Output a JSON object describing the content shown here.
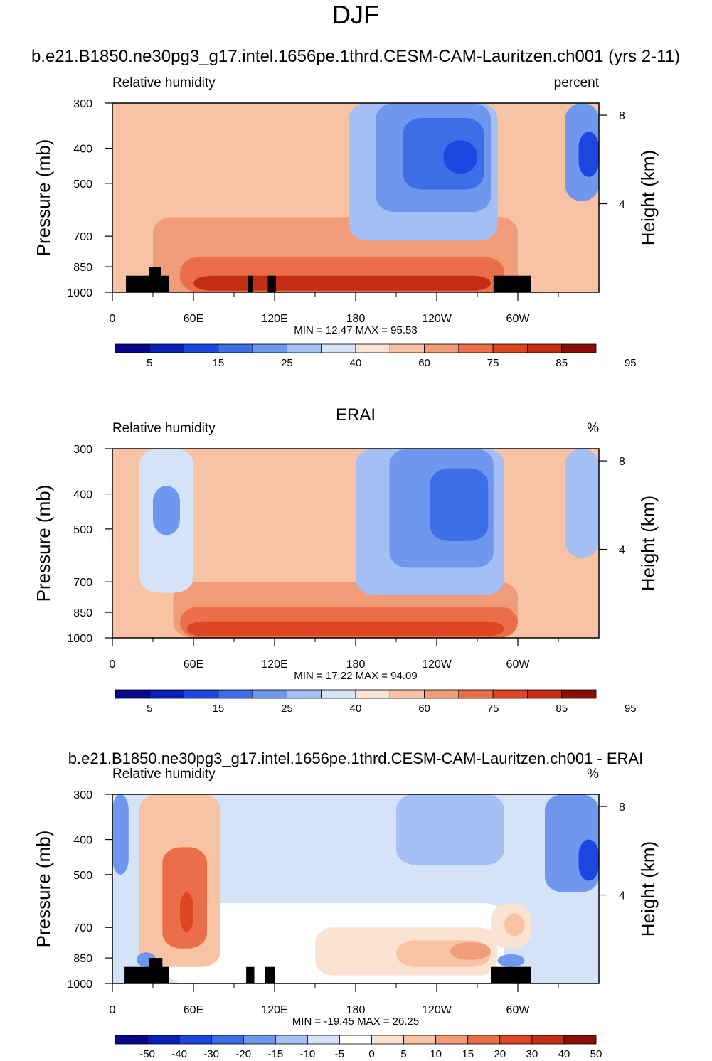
{
  "page": {
    "title": "DJF",
    "run_title": "b.e21.B1850.ne30pg3_g17.intel.1656pe.1thrd.CESM-CAM-Lauritzen.ch001 (yrs 2-11)"
  },
  "colors": {
    "rh_scale": [
      "#08088c",
      "#0a1fb5",
      "#1b46e0",
      "#3d6ee8",
      "#6f97ee",
      "#a3bff3",
      "#d4e3f7",
      "#fbe3d3",
      "#f8c2a4",
      "#f19c78",
      "#ea6f48",
      "#dc4623",
      "#c42e14",
      "#8c0d05"
    ],
    "diff_scale": [
      "#08088c",
      "#0a1fb5",
      "#1b46e0",
      "#3d6ee8",
      "#6f97ee",
      "#a3bff3",
      "#d4e3f7",
      "#ffffff",
      "#fbe3d3",
      "#f8c2a4",
      "#f19c78",
      "#ea6f48",
      "#dc4623",
      "#c42e14",
      "#8c0d05"
    ]
  },
  "chart_data": [
    {
      "type": "heatmap",
      "id": "model",
      "title": "",
      "left_label": "Relative humidity",
      "right_label": "percent",
      "ylabel": "Pressure (mb)",
      "ylabel_right": "Height (km)",
      "x_ticks": [
        "0",
        "60E",
        "120E",
        "180",
        "120W",
        "60W"
      ],
      "x_tick_lon": [
        0,
        60,
        120,
        180,
        240,
        300
      ],
      "xlim": [
        0,
        360
      ],
      "y_ticks": [
        "300",
        "400",
        "500",
        "700",
        "850",
        "1000"
      ],
      "y_tick_values": [
        300,
        400,
        500,
        700,
        850,
        1000
      ],
      "ylim": [
        300,
        1000
      ],
      "right_ticks": [
        "8",
        "4"
      ],
      "right_tick_km": [
        8,
        4
      ],
      "stats": "MIN =  12.47  MAX =  95.53",
      "min": 12.47,
      "max": 95.53,
      "colorbar_labels": [
        "5",
        "15",
        "25",
        "40",
        "60",
        "75",
        "85",
        "95"
      ],
      "colorbar_levels": [
        5,
        10,
        15,
        20,
        25,
        30,
        40,
        50,
        60,
        70,
        75,
        80,
        85,
        90,
        95
      ],
      "fields": [
        {
          "name": "background",
          "level_index": 8,
          "lon": [
            0,
            360
          ],
          "p": [
            300,
            1000
          ]
        },
        {
          "name": "lower_troposphere",
          "level_index": 9,
          "lon": [
            30,
            300
          ],
          "p": [
            620,
            1000
          ]
        },
        {
          "name": "boundary_layer",
          "level_index": 10,
          "lon": [
            50,
            290
          ],
          "p": [
            800,
            1000
          ]
        },
        {
          "name": "surface_max",
          "level_index": 12,
          "lon": [
            60,
            280
          ],
          "p": [
            900,
            990
          ]
        },
        {
          "name": "pacific_dry_outer",
          "level_index": 5,
          "lon": [
            175,
            285
          ],
          "p": [
            300,
            720
          ]
        },
        {
          "name": "pacific_dry",
          "level_index": 4,
          "lon": [
            195,
            280
          ],
          "p": [
            300,
            600
          ]
        },
        {
          "name": "pacific_dry_core",
          "level_index": 3,
          "lon": [
            215,
            275
          ],
          "p": [
            330,
            520
          ]
        },
        {
          "name": "pacific_dry_min",
          "level_index": 2,
          "lon": [
            245,
            270
          ],
          "p": [
            380,
            470
          ]
        },
        {
          "name": "atlantic_dry",
          "level_index": 4,
          "lon": [
            335,
            360
          ],
          "p": [
            300,
            560
          ]
        },
        {
          "name": "atlantic_dry_core",
          "level_index": 2,
          "lon": [
            345,
            360
          ],
          "p": [
            360,
            480
          ]
        }
      ],
      "topography": [
        {
          "lon": [
            10,
            42
          ],
          "p": [
            900,
            1000
          ]
        },
        {
          "lon": [
            27,
            36
          ],
          "p": [
            850,
            1000
          ]
        },
        {
          "lon": [
            100,
            104
          ],
          "p": [
            900,
            1000
          ]
        },
        {
          "lon": [
            115,
            121
          ],
          "p": [
            900,
            1000
          ]
        },
        {
          "lon": [
            282,
            310
          ],
          "p": [
            900,
            1000
          ]
        }
      ]
    },
    {
      "type": "heatmap",
      "id": "erai",
      "title": "ERAI",
      "left_label": "Relative humidity",
      "right_label": "%",
      "ylabel": "Pressure (mb)",
      "ylabel_right": "Height (km)",
      "x_ticks": [
        "0",
        "60E",
        "120E",
        "180",
        "120W",
        "60W"
      ],
      "x_tick_lon": [
        0,
        60,
        120,
        180,
        240,
        300
      ],
      "xlim": [
        0,
        360
      ],
      "y_ticks": [
        "300",
        "400",
        "500",
        "700",
        "850",
        "1000"
      ],
      "y_tick_values": [
        300,
        400,
        500,
        700,
        850,
        1000
      ],
      "ylim": [
        300,
        1000
      ],
      "right_ticks": [
        "8",
        "4"
      ],
      "right_tick_km": [
        8,
        4
      ],
      "stats": "MIN =  17.22  MAX =  94.09",
      "min": 17.22,
      "max": 94.09,
      "colorbar_labels": [
        "5",
        "15",
        "25",
        "40",
        "60",
        "75",
        "85",
        "95"
      ],
      "colorbar_levels": [
        5,
        10,
        15,
        20,
        25,
        30,
        40,
        50,
        60,
        70,
        75,
        80,
        85,
        90,
        95
      ],
      "fields": [
        {
          "name": "background",
          "level_index": 8,
          "lon": [
            0,
            360
          ],
          "p": [
            300,
            1000
          ]
        },
        {
          "name": "lower_troposphere",
          "level_index": 9,
          "lon": [
            45,
            300
          ],
          "p": [
            700,
            1000
          ]
        },
        {
          "name": "boundary_layer",
          "level_index": 10,
          "lon": [
            50,
            300
          ],
          "p": [
            820,
            1000
          ]
        },
        {
          "name": "surface_max",
          "level_index": 11,
          "lon": [
            55,
            290
          ],
          "p": [
            900,
            990
          ]
        },
        {
          "name": "mideast_dry",
          "level_index": 6,
          "lon": [
            20,
            60
          ],
          "p": [
            300,
            750
          ]
        },
        {
          "name": "mideast_dry_core",
          "level_index": 4,
          "lon": [
            30,
            50
          ],
          "p": [
            380,
            520
          ]
        },
        {
          "name": "pacific_dry_outer",
          "level_index": 5,
          "lon": [
            180,
            290
          ],
          "p": [
            300,
            760
          ]
        },
        {
          "name": "pacific_dry",
          "level_index": 4,
          "lon": [
            205,
            282
          ],
          "p": [
            300,
            640
          ]
        },
        {
          "name": "pacific_dry_core",
          "level_index": 3,
          "lon": [
            235,
            278
          ],
          "p": [
            340,
            540
          ]
        },
        {
          "name": "atlantic_dry",
          "level_index": 5,
          "lon": [
            335,
            360
          ],
          "p": [
            300,
            600
          ]
        }
      ],
      "topography": []
    },
    {
      "type": "heatmap",
      "id": "difference",
      "title": "b.e21.B1850.ne30pg3_g17.intel.1656pe.1thrd.CESM-CAM-Lauritzen.ch001 - ERAI",
      "left_label": "Relative humidity",
      "right_label": "%",
      "ylabel": "Pressure (mb)",
      "ylabel_right": "Height (km)",
      "x_ticks": [
        "0",
        "60E",
        "120E",
        "180",
        "120W",
        "60W"
      ],
      "x_tick_lon": [
        0,
        60,
        120,
        180,
        240,
        300
      ],
      "xlim": [
        0,
        360
      ],
      "y_ticks": [
        "300",
        "400",
        "500",
        "700",
        "850",
        "1000"
      ],
      "y_tick_values": [
        300,
        400,
        500,
        700,
        850,
        1000
      ],
      "ylim": [
        300,
        1000
      ],
      "right_ticks": [
        "8",
        "4"
      ],
      "right_tick_km": [
        8,
        4
      ],
      "stats": "MIN = -19.45  MAX =  26.25",
      "min": -19.45,
      "max": 26.25,
      "colorbar_labels": [
        "-50",
        "-40",
        "-30",
        "-20",
        "-15",
        "-10",
        "-5",
        "0",
        "5",
        "10",
        "15",
        "20",
        "30",
        "40",
        "50"
      ],
      "colorbar_levels": [
        -50,
        -40,
        -30,
        -20,
        -15,
        -10,
        -5,
        0,
        5,
        10,
        15,
        20,
        30,
        40,
        50
      ],
      "fields": [
        {
          "name": "background",
          "level_index": 6,
          "lon": [
            0,
            360
          ],
          "p": [
            300,
            1000
          ]
        },
        {
          "name": "lower_neutral",
          "level_index": 7,
          "lon": [
            40,
            290
          ],
          "p": [
            600,
            1000
          ]
        },
        {
          "name": "central_pacific_moist",
          "level_index": 8,
          "lon": [
            150,
            285
          ],
          "p": [
            700,
            950
          ]
        },
        {
          "name": "east_pacific_moist",
          "level_index": 9,
          "lon": [
            210,
            280
          ],
          "p": [
            760,
            900
          ]
        },
        {
          "name": "east_pacific_core",
          "level_index": 10,
          "lon": [
            250,
            280
          ],
          "p": [
            770,
            860
          ]
        },
        {
          "name": "indian_ocean_moist",
          "level_index": 9,
          "lon": [
            20,
            80
          ],
          "p": [
            300,
            900
          ]
        },
        {
          "name": "indian_ocean_core",
          "level_index": 11,
          "lon": [
            37,
            70
          ],
          "p": [
            420,
            800
          ]
        },
        {
          "name": "indian_ocean_max",
          "level_index": 12,
          "lon": [
            50,
            60
          ],
          "p": [
            560,
            720
          ]
        },
        {
          "name": "andes_moist",
          "level_index": 8,
          "lon": [
            280,
            310
          ],
          "p": [
            600,
            800
          ]
        },
        {
          "name": "andes_core",
          "level_index": 9,
          "lon": [
            290,
            305
          ],
          "p": [
            640,
            740
          ]
        },
        {
          "name": "west_pacific_dry",
          "level_index": 5,
          "lon": [
            210,
            290
          ],
          "p": [
            300,
            470
          ]
        },
        {
          "name": "africa_dry",
          "level_index": 4,
          "lon": [
            0,
            12
          ],
          "p": [
            300,
            500
          ]
        },
        {
          "name": "atlantic_dry",
          "level_index": 4,
          "lon": [
            320,
            360
          ],
          "p": [
            300,
            560
          ]
        },
        {
          "name": "atlantic_dry_core",
          "level_index": 2,
          "lon": [
            345,
            360
          ],
          "p": [
            400,
            520
          ]
        },
        {
          "name": "surface_dry_africa",
          "level_index": 4,
          "lon": [
            18,
            32
          ],
          "p": [
            820,
            900
          ]
        },
        {
          "name": "surface_dry_andes",
          "level_index": 4,
          "lon": [
            285,
            305
          ],
          "p": [
            830,
            900
          ]
        }
      ],
      "topography": [
        {
          "lon": [
            9,
            42
          ],
          "p": [
            900,
            1000
          ]
        },
        {
          "lon": [
            27,
            37
          ],
          "p": [
            850,
            1000
          ]
        },
        {
          "lon": [
            99,
            105
          ],
          "p": [
            900,
            1000
          ]
        },
        {
          "lon": [
            113,
            120
          ],
          "p": [
            900,
            1000
          ]
        },
        {
          "lon": [
            280,
            310
          ],
          "p": [
            900,
            1000
          ]
        }
      ]
    }
  ]
}
